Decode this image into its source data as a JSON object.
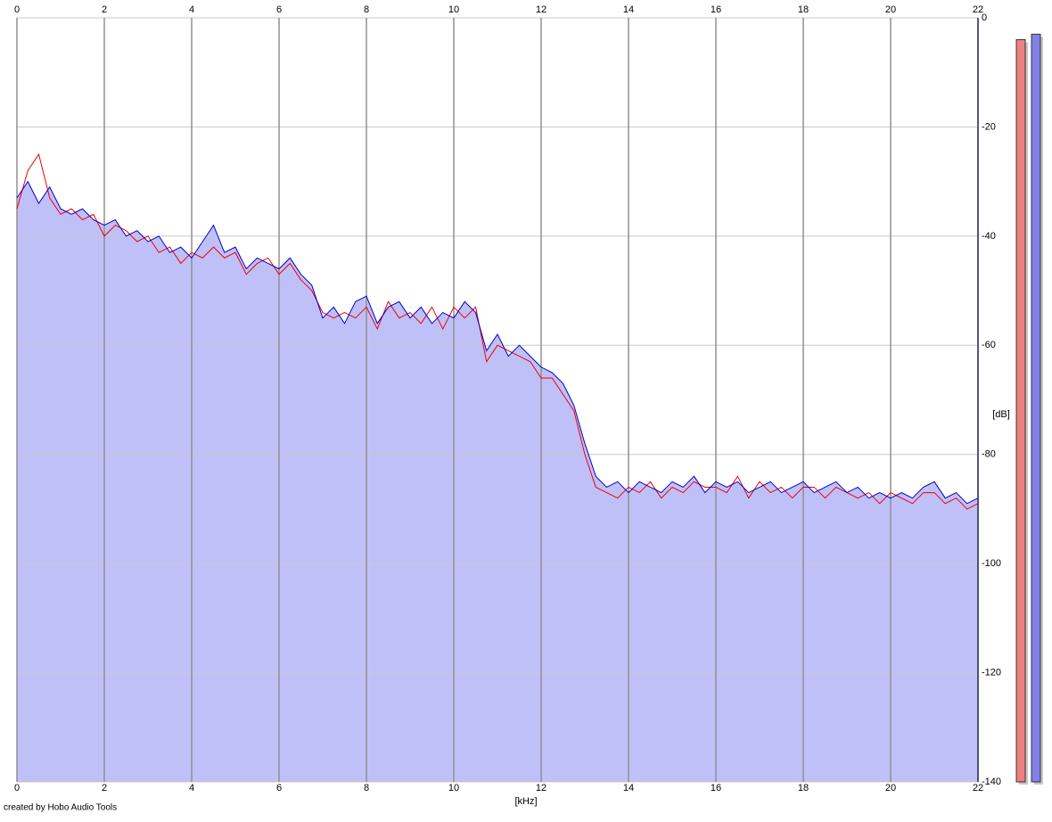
{
  "chart_data": {
    "type": "spectrum",
    "x_label": "[kHz]",
    "y_label": "[dB]",
    "credit": "created by Hobo Audio Tools",
    "xlim": [
      0,
      22
    ],
    "xticks": [
      0,
      2,
      4,
      6,
      8,
      10,
      12,
      14,
      16,
      18,
      20,
      22
    ],
    "ylim": [
      -140,
      0
    ],
    "yticks": [
      0,
      -20,
      -40,
      -60,
      -80,
      -100,
      -120,
      -140
    ],
    "grid": true,
    "fill_color": "#c0c0f8",
    "x": [
      0,
      0.25,
      0.5,
      0.75,
      1,
      1.25,
      1.5,
      1.75,
      2,
      2.25,
      2.5,
      2.75,
      3,
      3.25,
      3.5,
      3.75,
      4,
      4.25,
      4.5,
      4.75,
      5,
      5.25,
      5.5,
      5.75,
      6,
      6.25,
      6.5,
      6.75,
      7,
      7.25,
      7.5,
      7.75,
      8,
      8.25,
      8.5,
      8.75,
      9,
      9.25,
      9.5,
      9.75,
      10,
      10.25,
      10.5,
      10.75,
      11,
      11.25,
      11.5,
      11.75,
      12,
      12.25,
      12.5,
      12.75,
      13,
      13.25,
      13.5,
      13.75,
      14,
      14.25,
      14.5,
      14.75,
      15,
      15.25,
      15.5,
      15.75,
      16,
      16.25,
      16.5,
      16.75,
      17,
      17.25,
      17.5,
      17.75,
      18,
      18.25,
      18.5,
      18.75,
      19,
      19.25,
      19.5,
      19.75,
      20,
      20.25,
      20.5,
      20.75,
      21,
      21.25,
      21.5,
      21.75,
      22
    ],
    "series": [
      {
        "color": "#ee0000",
        "values": [
          -35,
          -28,
          -25,
          -33,
          -36,
          -35,
          -37,
          -36,
          -40,
          -38,
          -39,
          -41,
          -40,
          -43,
          -42,
          -45,
          -43,
          -44,
          -42,
          -44,
          -43,
          -47,
          -45,
          -44,
          -47,
          -45,
          -48,
          -50,
          -54,
          -55,
          -54,
          -55,
          -53,
          -57,
          -52,
          -55,
          -54,
          -56,
          -53,
          -57,
          -53,
          -55,
          -53,
          -63,
          -60,
          -61,
          -62,
          -63,
          -66,
          -66,
          -69,
          -72,
          -80,
          -86,
          -87,
          -88,
          -86,
          -87,
          -85,
          -88,
          -86,
          -87,
          -85,
          -86,
          -86,
          -87,
          -84,
          -88,
          -85,
          -87,
          -86,
          -88,
          -86,
          -86,
          -88,
          -86,
          -87,
          -88,
          -87,
          -89,
          -87,
          -88,
          -89,
          -87,
          -87,
          -89,
          -88,
          -90,
          -89
        ]
      },
      {
        "color": "#0000cc",
        "values": [
          -33,
          -30,
          -34,
          -31,
          -35,
          -36,
          -35,
          -37,
          -38,
          -37,
          -40,
          -39,
          -41,
          -40,
          -43,
          -42,
          -44,
          -41,
          -38,
          -43,
          -42,
          -46,
          -44,
          -45,
          -46,
          -44,
          -47,
          -49,
          -55,
          -53,
          -56,
          -52,
          -51,
          -56,
          -53,
          -52,
          -55,
          -53,
          -56,
          -54,
          -55,
          -52,
          -54,
          -61,
          -58,
          -62,
          -60,
          -62,
          -64,
          -65,
          -67,
          -71,
          -78,
          -84,
          -86,
          -85,
          -87,
          -85,
          -86,
          -87,
          -85,
          -86,
          -84,
          -87,
          -85,
          -86,
          -85,
          -87,
          -86,
          -85,
          -87,
          -86,
          -85,
          -87,
          -86,
          -85,
          -87,
          -86,
          -88,
          -87,
          -88,
          -87,
          -88,
          -86,
          -85,
          -88,
          -87,
          -89,
          -88
        ]
      }
    ],
    "level_bars": [
      {
        "color": "#f08080",
        "value": -4
      },
      {
        "color": "#8080e8",
        "value": -3
      }
    ]
  }
}
